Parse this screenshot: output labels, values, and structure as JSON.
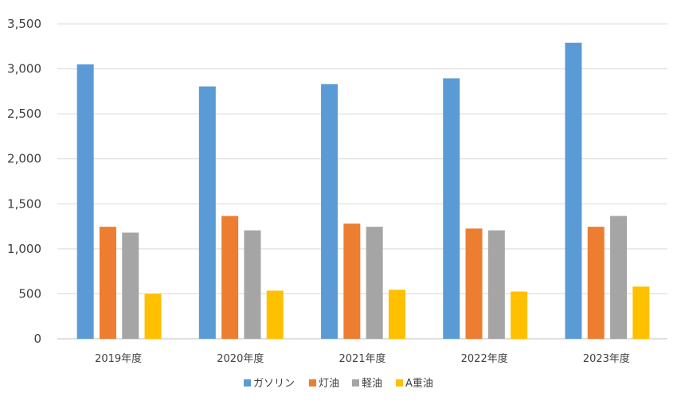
{
  "chart_data": {
    "type": "bar",
    "title": "",
    "xlabel": "",
    "ylabel": "",
    "categories": [
      "2019年度",
      "2020年度",
      "2021年度",
      "2022年度",
      "2023年度"
    ],
    "ylim": [
      0,
      3500
    ],
    "yticks": [
      0,
      500,
      1000,
      1500,
      2000,
      2500,
      3000,
      3500
    ],
    "ytick_labels": [
      "0",
      "500",
      "1,000",
      "1,500",
      "2,000",
      "2,500",
      "3,000",
      "3,500"
    ],
    "grid": true,
    "legend_position": "bottom",
    "series": [
      {
        "name": "ガソリン",
        "color": "#5B9BD5",
        "values": [
          3050,
          2805,
          2830,
          2895,
          3290
        ]
      },
      {
        "name": "灯油",
        "color": "#ED7D31",
        "values": [
          1245,
          1365,
          1280,
          1225,
          1245
        ]
      },
      {
        "name": "軽油",
        "color": "#A5A5A5",
        "values": [
          1180,
          1205,
          1245,
          1205,
          1365
        ]
      },
      {
        "name": "A重油",
        "color": "#FFC000",
        "values": [
          500,
          535,
          545,
          525,
          580
        ]
      }
    ]
  }
}
